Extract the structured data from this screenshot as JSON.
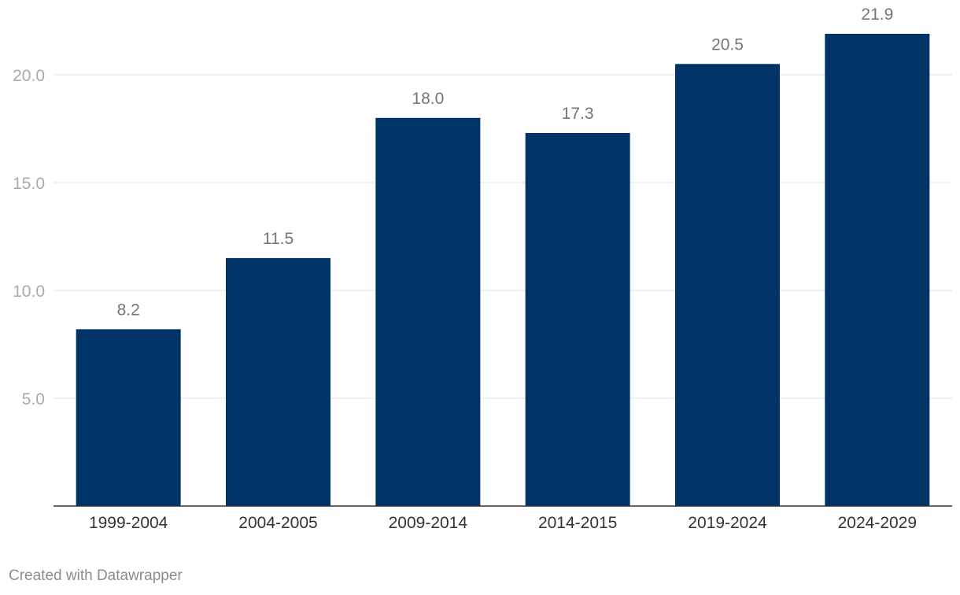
{
  "chart_data": {
    "type": "bar",
    "categories": [
      "1999-2004",
      "2004-2005",
      "2009-2014",
      "2014-2015",
      "2019-2024",
      "2024-2029"
    ],
    "values": [
      8.2,
      11.5,
      18.0,
      17.3,
      20.5,
      21.9
    ],
    "value_labels": [
      "8.2",
      "11.5",
      "18.0",
      "17.3",
      "20.5",
      "21.9"
    ],
    "yticks": [
      5.0,
      10.0,
      15.0,
      20.0
    ],
    "ytick_labels": [
      "5.0",
      "10.0",
      "15.0",
      "20.0"
    ],
    "ylim": [
      0,
      21.9
    ],
    "grid": true,
    "bar_color": "#003366",
    "title": "",
    "xlabel": "",
    "ylabel": ""
  },
  "footer": {
    "credit": "Created with Datawrapper"
  }
}
